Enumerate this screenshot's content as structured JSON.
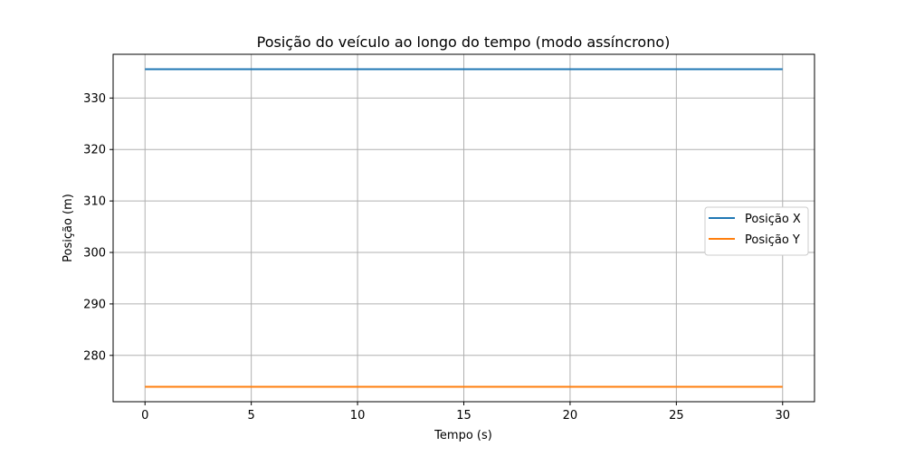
{
  "chart_data": {
    "type": "line",
    "title": "Posição do veículo ao longo do tempo (modo assíncrono)",
    "xlabel": "Tempo (s)",
    "ylabel": "Posição (m)",
    "xlim": [
      -1.5,
      31.5
    ],
    "ylim": [
      271.0,
      338.5
    ],
    "xticks": [
      0,
      5,
      10,
      15,
      20,
      25,
      30
    ],
    "yticks": [
      280,
      290,
      300,
      310,
      320,
      330
    ],
    "grid": true,
    "legend_position": "center-right",
    "series": [
      {
        "name": "Posição X",
        "color": "#1f77b4",
        "x": [
          0,
          30
        ],
        "y": [
          335.6,
          335.6
        ]
      },
      {
        "name": "Posição Y",
        "color": "#ff7f0e",
        "x": [
          0,
          30
        ],
        "y": [
          273.9,
          273.9
        ]
      }
    ]
  }
}
